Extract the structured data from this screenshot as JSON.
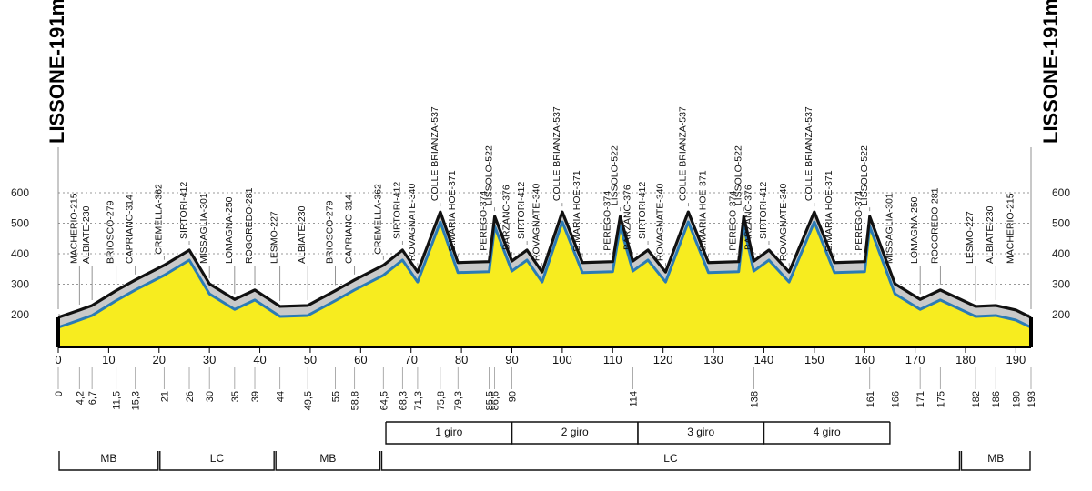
{
  "chart_data": {
    "type": "area",
    "title": "",
    "start_label": "LISSONE-191m",
    "end_label": "LISSONE-191m",
    "y_ticks": [
      200,
      300,
      400,
      500,
      600
    ],
    "ylim": [
      100,
      600
    ],
    "x_ticks": [
      0,
      10,
      20,
      30,
      40,
      50,
      60,
      70,
      80,
      90,
      100,
      110,
      120,
      130,
      140,
      150,
      160,
      170,
      180,
      190
    ],
    "xlim": [
      0,
      193
    ],
    "grid": true,
    "profile": [
      [
        0,
        191
      ],
      [
        4.2,
        215
      ],
      [
        6.7,
        230
      ],
      [
        11.5,
        279
      ],
      [
        15.3,
        314
      ],
      [
        21,
        362
      ],
      [
        26,
        412
      ],
      [
        30,
        301
      ],
      [
        35,
        250
      ],
      [
        39,
        281
      ],
      [
        44,
        227
      ],
      [
        49.5,
        230
      ],
      [
        55,
        279
      ],
      [
        58.8,
        314
      ],
      [
        64.5,
        362
      ],
      [
        68.3,
        412
      ],
      [
        71.3,
        340
      ],
      [
        75.8,
        537
      ],
      [
        79.3,
        371
      ],
      [
        85.5,
        374
      ],
      [
        86.6,
        522
      ],
      [
        90,
        376
      ],
      [
        93,
        412
      ],
      [
        96,
        340
      ],
      [
        100,
        537
      ],
      [
        104,
        371
      ],
      [
        110,
        374
      ],
      [
        111.5,
        522
      ],
      [
        114,
        376
      ],
      [
        117,
        412
      ],
      [
        120.5,
        340
      ],
      [
        125,
        537
      ],
      [
        129,
        371
      ],
      [
        135,
        374
      ],
      [
        136,
        522
      ],
      [
        138,
        376
      ],
      [
        141,
        412
      ],
      [
        145,
        340
      ],
      [
        150,
        537
      ],
      [
        154,
        371
      ],
      [
        160,
        374
      ],
      [
        161,
        522
      ],
      [
        166,
        301
      ],
      [
        171,
        250
      ],
      [
        175,
        281
      ],
      [
        182,
        227
      ],
      [
        186,
        230
      ],
      [
        190,
        215
      ],
      [
        193,
        191
      ]
    ],
    "places": [
      {
        "km": 4.2,
        "label": "MACHERIO-215"
      },
      {
        "km": 6.7,
        "label": "ALBIATE-230"
      },
      {
        "km": 11.5,
        "label": "BRIOSCO-279"
      },
      {
        "km": 15.3,
        "label": "CAPRIANO-314"
      },
      {
        "km": 21,
        "label": "CREMELLA-362"
      },
      {
        "km": 26,
        "label": "SIRTORI-412"
      },
      {
        "km": 30,
        "label": "MISSAGLIA-301"
      },
      {
        "km": 35,
        "label": "LOMAGNA-250"
      },
      {
        "km": 39,
        "label": "ROGOREDO-281"
      },
      {
        "km": 44,
        "label": "LESMO-227"
      },
      {
        "km": 49.5,
        "label": "ALBIATE-230"
      },
      {
        "km": 55,
        "label": "BRIOSCO-279"
      },
      {
        "km": 58.8,
        "label": "CAPRIANO-314"
      },
      {
        "km": 64.5,
        "label": "CREMELLA-362"
      },
      {
        "km": 68.3,
        "label": "SIRTORI-412"
      },
      {
        "km": 71.3,
        "label": "ROVAGNATE-340"
      },
      {
        "km": 75.8,
        "label": "COLLE BRIANZA-537"
      },
      {
        "km": 79.3,
        "label": "S.MARIA HOE-371"
      },
      {
        "km": 85.5,
        "label": "PEREGO-374"
      },
      {
        "km": 86.6,
        "label": "LISSOLO-522"
      },
      {
        "km": 90,
        "label": "BARZANO-376"
      },
      {
        "km": 93,
        "label": "SIRTORI-412"
      },
      {
        "km": 96,
        "label": "ROVAGNATE-340"
      },
      {
        "km": 100,
        "label": "COLLE BRIANZA-537"
      },
      {
        "km": 104,
        "label": "S.MARIA HOE-371"
      },
      {
        "km": 110,
        "label": "PEREGO-374"
      },
      {
        "km": 111.5,
        "label": "LISSOLO-522"
      },
      {
        "km": 114,
        "label": "BARZANO-376"
      },
      {
        "km": 117,
        "label": "SIRTORI-412"
      },
      {
        "km": 120.5,
        "label": "ROVAGNATE-340"
      },
      {
        "km": 125,
        "label": "COLLE BRIANZA-537"
      },
      {
        "km": 129,
        "label": "S.MARIA HOE-371"
      },
      {
        "km": 135,
        "label": "PEREGO-374"
      },
      {
        "km": 136,
        "label": "LISSOLO-522"
      },
      {
        "km": 138,
        "label": "BARZANO-376"
      },
      {
        "km": 141,
        "label": "SIRTORI-412"
      },
      {
        "km": 145,
        "label": "ROVAGNATE-340"
      },
      {
        "km": 150,
        "label": "COLLE BRIANZA-537"
      },
      {
        "km": 154,
        "label": "S.MARIA HOE-371"
      },
      {
        "km": 160,
        "label": "PEREGO-374"
      },
      {
        "km": 161,
        "label": "LISSOLO-522"
      },
      {
        "km": 166,
        "label": "MISSAGLIA-301"
      },
      {
        "km": 171,
        "label": "LOMAGNA-250"
      },
      {
        "km": 175,
        "label": "ROGOREDO-281"
      },
      {
        "km": 182,
        "label": "LESMO-227"
      },
      {
        "km": 186,
        "label": "ALBIATE-230"
      },
      {
        "km": 190,
        "label": "MACHERIO-215"
      }
    ],
    "km_marks": [
      {
        "km": 0,
        "label": "0"
      },
      {
        "km": 4.2,
        "label": "4,2"
      },
      {
        "km": 6.7,
        "label": "6,7"
      },
      {
        "km": 11.5,
        "label": "11,5"
      },
      {
        "km": 15.3,
        "label": "15,3"
      },
      {
        "km": 21,
        "label": "21"
      },
      {
        "km": 26,
        "label": "26"
      },
      {
        "km": 30,
        "label": "30"
      },
      {
        "km": 35,
        "label": "35"
      },
      {
        "km": 39,
        "label": "39"
      },
      {
        "km": 44,
        "label": "44"
      },
      {
        "km": 49.5,
        "label": "49,5"
      },
      {
        "km": 55,
        "label": "55"
      },
      {
        "km": 58.8,
        "label": "58,8"
      },
      {
        "km": 64.5,
        "label": "64,5"
      },
      {
        "km": 68.3,
        "label": "68,3"
      },
      {
        "km": 71.3,
        "label": "71,3"
      },
      {
        "km": 75.8,
        "label": "75,8"
      },
      {
        "km": 79.3,
        "label": "79,3"
      },
      {
        "km": 85.5,
        "label": "85,5"
      },
      {
        "km": 86.6,
        "label": "86,6"
      },
      {
        "km": 90,
        "label": "90"
      },
      {
        "km": 114,
        "label": "114"
      },
      {
        "km": 138,
        "label": "138"
      },
      {
        "km": 161,
        "label": "161"
      },
      {
        "km": 166,
        "label": "166"
      },
      {
        "km": 171,
        "label": "171"
      },
      {
        "km": 175,
        "label": "175"
      },
      {
        "km": 182,
        "label": "182"
      },
      {
        "km": 186,
        "label": "186"
      },
      {
        "km": 190,
        "label": "190"
      },
      {
        "km": 193,
        "label": "193"
      }
    ],
    "laps": [
      {
        "label": "1 giro",
        "from": 65,
        "to": 90
      },
      {
        "label": "2 giro",
        "from": 90,
        "to": 115
      },
      {
        "label": "3 giro",
        "from": 115,
        "to": 140
      },
      {
        "label": "4 giro",
        "from": 140,
        "to": 165
      }
    ],
    "sections": [
      {
        "label": "MB",
        "from": 0,
        "to": 20
      },
      {
        "label": "LC",
        "from": 20,
        "to": 43
      },
      {
        "label": "MB",
        "from": 43,
        "to": 64
      },
      {
        "label": "LC",
        "from": 64,
        "to": 179
      },
      {
        "label": "MB",
        "from": 179,
        "to": 193
      }
    ],
    "colors": {
      "fill": "#f7ec1f",
      "top_line": "#111111",
      "blue_line": "#2b7bb5",
      "gray_band": "#c9c9c9",
      "grid": "#777777"
    }
  }
}
